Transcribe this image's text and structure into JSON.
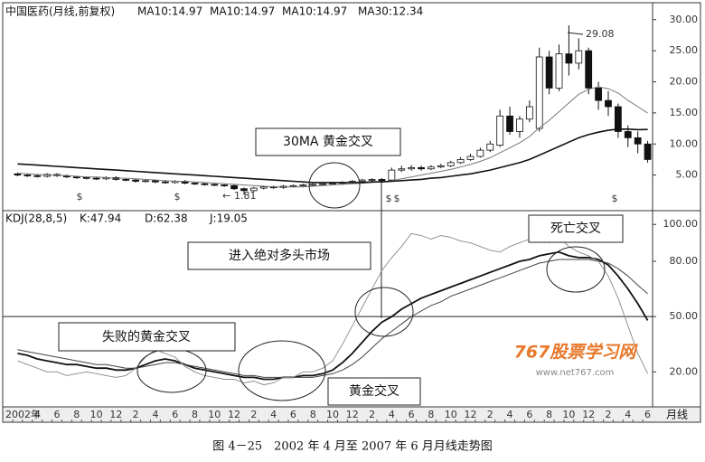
{
  "chart_data": [
    {
      "type": "candlestick",
      "title": "中国医药(月线,前复权)",
      "legend_labels": [
        "MA10:14.97",
        "MA10:14.97",
        "MA10:14.97",
        "MA30:12.34"
      ],
      "categories": [
        "2002年",
        null,
        "4",
        null,
        "6",
        null,
        "8",
        null,
        "10",
        null,
        "12",
        null,
        "2",
        null,
        "4",
        null,
        "6",
        null,
        "8",
        null,
        "10",
        null,
        "12",
        null,
        "2",
        null,
        "4",
        null,
        "6",
        null,
        "8",
        null,
        "10",
        null,
        "12",
        null,
        "2",
        null,
        "4",
        null,
        "6",
        null,
        "8",
        null,
        "10",
        null,
        "12",
        null,
        "2",
        null,
        "4",
        null,
        "6",
        null,
        "8",
        null,
        "10",
        null,
        "12",
        null,
        "2",
        null,
        "4",
        null,
        "6"
      ],
      "open": [
        5.2,
        5.0,
        4.9,
        4.8,
        5.1,
        4.9,
        4.7,
        4.6,
        4.5,
        4.4,
        4.6,
        4.3,
        4.2,
        4.0,
        4.1,
        3.9,
        3.8,
        4.0,
        3.7,
        3.6,
        3.5,
        3.4,
        3.3,
        2.8,
        2.5,
        2.9,
        3.1,
        3.0,
        3.2,
        3.3,
        3.4,
        3.5,
        3.6,
        3.7,
        3.8,
        4.0,
        4.2,
        4.3,
        4.2,
        5.8,
        6.0,
        6.2,
        6.0,
        6.3,
        6.5,
        7.0,
        7.5,
        8.0,
        9.0,
        9.8,
        14.5,
        12.0,
        14.0,
        12.5,
        24.0,
        19.0,
        24.5,
        23.0,
        25.0,
        19.0,
        17.0,
        16.0,
        12.0,
        11.0,
        10.0
      ],
      "high": [
        5.4,
        5.2,
        5.1,
        5.3,
        5.3,
        5.1,
        4.9,
        4.8,
        4.7,
        4.8,
        4.8,
        4.5,
        4.4,
        4.3,
        4.3,
        4.1,
        4.2,
        4.2,
        3.9,
        3.8,
        3.7,
        3.6,
        3.5,
        3.0,
        3.1,
        3.3,
        3.3,
        3.4,
        3.5,
        3.6,
        3.7,
        3.8,
        3.9,
        4.0,
        4.2,
        4.4,
        4.5,
        4.5,
        6.2,
        6.5,
        6.6,
        6.5,
        6.6,
        6.8,
        7.3,
        7.9,
        8.4,
        9.4,
        10.5,
        15.5,
        16.0,
        14.5,
        17.0,
        25.5,
        25.0,
        26.0,
        29.08,
        27.0,
        25.5,
        20.0,
        18.5,
        16.5,
        13.0,
        12.0,
        10.5
      ],
      "low": [
        4.8,
        4.7,
        4.6,
        4.6,
        4.7,
        4.5,
        4.4,
        4.3,
        4.2,
        4.2,
        4.1,
        4.0,
        3.8,
        3.8,
        3.7,
        3.6,
        3.6,
        3.5,
        3.4,
        3.3,
        3.2,
        3.1,
        2.6,
        1.81,
        2.3,
        2.7,
        2.8,
        2.8,
        3.0,
        3.1,
        3.2,
        3.3,
        3.4,
        3.5,
        3.6,
        3.8,
        4.0,
        3.9,
        4.0,
        5.5,
        5.7,
        5.7,
        5.8,
        6.1,
        6.3,
        6.8,
        7.3,
        7.8,
        8.7,
        9.5,
        11.5,
        11.0,
        13.5,
        12.0,
        18.0,
        18.5,
        21.0,
        22.0,
        18.0,
        15.5,
        14.5,
        11.0,
        9.5,
        8.5,
        7.0
      ],
      "close": [
        5.0,
        4.9,
        4.8,
        5.1,
        4.9,
        4.7,
        4.6,
        4.5,
        4.4,
        4.6,
        4.3,
        4.2,
        4.0,
        4.1,
        3.9,
        3.8,
        4.0,
        3.7,
        3.6,
        3.5,
        3.4,
        3.3,
        2.8,
        2.5,
        2.9,
        3.1,
        3.0,
        3.2,
        3.3,
        3.4,
        3.5,
        3.6,
        3.7,
        3.8,
        4.0,
        4.2,
        4.3,
        4.1,
        5.8,
        6.0,
        6.2,
        6.0,
        6.3,
        6.5,
        7.0,
        7.5,
        8.0,
        9.0,
        10.0,
        14.5,
        12.0,
        14.0,
        16.0,
        24.0,
        19.0,
        24.5,
        23.0,
        25.0,
        19.0,
        17.0,
        16.0,
        12.0,
        11.0,
        10.0,
        7.5
      ],
      "up_color": "#ffffff",
      "down_color": "#111111",
      "series": [
        {
          "color": "#777777",
          "width": 1,
          "values": [
            5.3,
            5.2,
            5.1,
            5.0,
            5.0,
            4.9,
            4.8,
            4.7,
            4.7,
            4.6,
            4.5,
            4.5,
            4.4,
            4.3,
            4.2,
            4.1,
            4.0,
            4.0,
            3.9,
            3.8,
            3.7,
            3.6,
            3.5,
            3.4,
            3.3,
            3.2,
            3.1,
            3.1,
            3.1,
            3.1,
            3.2,
            3.3,
            3.4,
            3.5,
            3.6,
            3.7,
            3.8,
            3.9,
            4.1,
            4.4,
            4.7,
            5.0,
            5.3,
            5.6,
            5.9,
            6.3,
            6.7,
            7.2,
            7.8,
            8.6,
            9.4,
            10.2,
            11.2,
            12.6,
            13.8,
            15.2,
            16.6,
            18.0,
            18.8,
            19.2,
            18.9,
            18.2,
            17.0,
            16.0,
            14.97
          ]
        },
        {
          "color": "#111111",
          "width": 1.6,
          "values": [
            6.8,
            6.7,
            6.6,
            6.5,
            6.4,
            6.3,
            6.2,
            6.1,
            6.0,
            5.9,
            5.8,
            5.7,
            5.6,
            5.5,
            5.4,
            5.3,
            5.2,
            5.1,
            5.0,
            4.9,
            4.8,
            4.7,
            4.6,
            4.5,
            4.4,
            4.3,
            4.2,
            4.1,
            4.0,
            3.9,
            3.8,
            3.8,
            3.8,
            3.8,
            3.8,
            3.8,
            3.9,
            3.9,
            4.0,
            4.1,
            4.2,
            4.3,
            4.5,
            4.6,
            4.8,
            5.0,
            5.2,
            5.5,
            5.8,
            6.2,
            6.6,
            7.0,
            7.5,
            8.2,
            8.9,
            9.6,
            10.3,
            11.0,
            11.5,
            11.9,
            12.2,
            12.4,
            12.4,
            12.3,
            12.34
          ]
        }
      ],
      "annotations": [
        29.08,
        1.81
      ],
      "ylim": [
        0,
        32
      ],
      "yticks": [
        {
          "value": 5,
          "label": "5.00"
        },
        {
          "value": 10,
          "label": "10.00"
        },
        {
          "value": 15,
          "label": "15.00"
        },
        {
          "value": 20,
          "label": "20.00"
        },
        {
          "value": 25,
          "label": "25.00"
        },
        {
          "value": 30,
          "label": "30.00"
        }
      ]
    },
    {
      "type": "line",
      "title": "KDJ(28,8,5)",
      "legend_labels": [
        "K:47.94",
        "D:62.38",
        "J:19.05"
      ],
      "series": [
        {
          "color": "#111111",
          "width": 1.8,
          "values": [
            30,
            29,
            27,
            26,
            25,
            24,
            24,
            23,
            22,
            22,
            21,
            21,
            22,
            24,
            26,
            27,
            26,
            24,
            22,
            21,
            20,
            19,
            18,
            17,
            17,
            16,
            16,
            17,
            17,
            18,
            18,
            19,
            21,
            25,
            30,
            36,
            42,
            47,
            50,
            54,
            57,
            60,
            62,
            64,
            66,
            68,
            70,
            72,
            74,
            76,
            78,
            80,
            81,
            83,
            84,
            85,
            83,
            82,
            82,
            81,
            78,
            72,
            65,
            57,
            47.94
          ]
        },
        {
          "color": "#444444",
          "width": 1,
          "values": [
            32,
            31,
            30,
            29,
            28,
            27,
            26,
            25,
            24,
            24,
            23,
            22,
            22,
            23,
            24,
            25,
            25,
            24,
            23,
            22,
            21,
            20,
            19,
            18,
            18,
            17,
            17,
            17,
            17,
            17,
            17,
            18,
            19,
            21,
            24,
            28,
            33,
            38,
            42,
            46,
            50,
            53,
            56,
            58,
            61,
            63,
            65,
            67,
            69,
            71,
            73,
            75,
            77,
            79,
            80,
            81,
            81,
            81,
            81,
            80,
            79,
            76,
            72,
            67,
            62.38
          ]
        },
        {
          "color": "#888888",
          "width": 0.9,
          "values": [
            26,
            24,
            22,
            20,
            20,
            18,
            19,
            20,
            19,
            18,
            17,
            18,
            22,
            28,
            32,
            30,
            28,
            23,
            20,
            18,
            17,
            16,
            16,
            14,
            15,
            13,
            14,
            17,
            17,
            20,
            20,
            22,
            26,
            35,
            45,
            55,
            65,
            75,
            82,
            88,
            95,
            94,
            92,
            94,
            93,
            91,
            90,
            88,
            86,
            85,
            88,
            90,
            92,
            95,
            90,
            93,
            88,
            85,
            83,
            80,
            72,
            60,
            45,
            30,
            19.05
          ]
        }
      ],
      "reference_lines": [
        50
      ],
      "ylim": [
        2,
        106
      ],
      "yticks": [
        {
          "value": 20,
          "label": "20.00"
        },
        {
          "value": 50,
          "label": "50.00"
        },
        {
          "value": 80,
          "label": "80.00"
        },
        {
          "value": 100,
          "label": "100.00"
        }
      ]
    }
  ],
  "event_marker": "$",
  "callouts": [
    "30MA 黄金交叉",
    "进入绝对多头市场",
    "死亡交叉",
    "失败的黄金交叉",
    "黄金交叉"
  ],
  "watermark": {
    "title": "767股票学习网",
    "url": "www.net767.com"
  },
  "period_label": "月线",
  "caption": "图 4－25　2002 年 4 月至 2007 年 6 月月线走势图"
}
